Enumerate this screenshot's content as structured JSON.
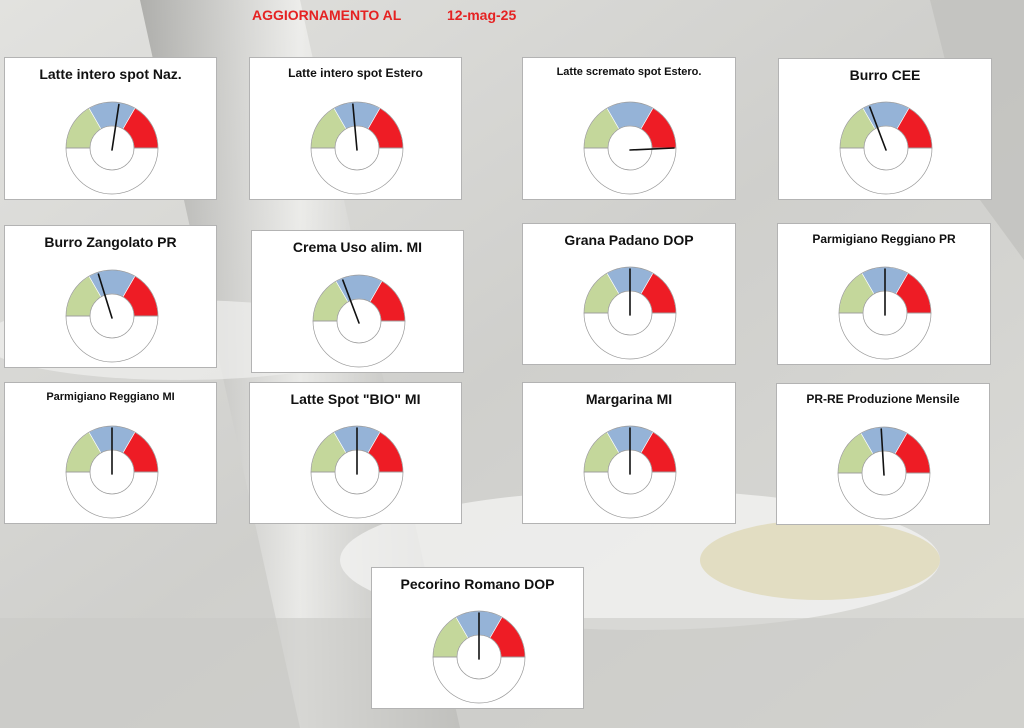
{
  "header": {
    "label": "AGGIORNAMENTO AL",
    "date": "12-mag-25"
  },
  "colors": {
    "low": "#c4d79b",
    "mid": "#95b3d7",
    "high": "#ee1c25",
    "header": "#e52222",
    "needle": "#111111"
  },
  "chart_data": [
    {
      "type": "gauge",
      "title": "Latte intero spot Naz.",
      "value": 0.55
    },
    {
      "type": "gauge",
      "title": "Latte intero spot Estero",
      "value": 0.47
    },
    {
      "type": "gauge",
      "title": "Latte scremato spot Estero.",
      "value": 1.0
    },
    {
      "type": "gauge",
      "title": "Burro CEE",
      "value": 0.38
    },
    {
      "type": "gauge",
      "title": "Burro Zangolato PR",
      "value": 0.4
    },
    {
      "type": "gauge",
      "title": "Crema Uso alim. MI",
      "value": 0.38
    },
    {
      "type": "gauge",
      "title": "Grana Padano DOP",
      "value": 0.5
    },
    {
      "type": "gauge",
      "title": "Parmigiano Reggiano PR",
      "value": 0.5
    },
    {
      "type": "gauge",
      "title": "Parmigiano Reggiano MI",
      "value": 0.5
    },
    {
      "type": "gauge",
      "title": "Latte Spot \"BIO\" MI",
      "value": 0.5
    },
    {
      "type": "gauge",
      "title": "Margarina MI",
      "value": 0.5
    },
    {
      "type": "gauge",
      "title": "PR-RE Produzione Mensile",
      "value": 0.48
    },
    {
      "type": "gauge",
      "title": "Pecorino Romano DOP",
      "value": 0.5
    }
  ]
}
